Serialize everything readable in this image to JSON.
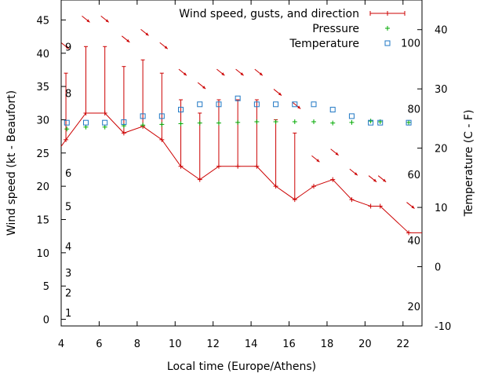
{
  "chart_data": {
    "type": "line",
    "xlabel": "Local time (Europe/Athens)",
    "ylabel": "Wind speed (kt - Beaufort)",
    "y2label": "Temperature (C - F)",
    "xlim": [
      4,
      23
    ],
    "ylim": [
      -1,
      48
    ],
    "y2lim": [
      -10,
      45
    ],
    "x_ticks": [
      4,
      6,
      8,
      10,
      12,
      14,
      16,
      18,
      20,
      22
    ],
    "y_ticks": [
      0,
      5,
      10,
      15,
      20,
      25,
      30,
      35,
      40,
      45
    ],
    "y2_ticks": [
      -10,
      0,
      10,
      20,
      30,
      40
    ],
    "beaufort_labels": [
      {
        "label": "1",
        "value": 1
      },
      {
        "label": "2",
        "value": 4
      },
      {
        "label": "3",
        "value": 7
      },
      {
        "label": "4",
        "value": 11
      },
      {
        "label": "5",
        "value": 17
      },
      {
        "label": "6",
        "value": 22
      },
      {
        "label": "8",
        "value": 34
      },
      {
        "label": "9",
        "value": 41
      }
    ],
    "fahrenheit_labels": [
      {
        "label": "20",
        "value": 20
      },
      {
        "label": "40",
        "value": 40
      },
      {
        "label": "60",
        "value": 60
      },
      {
        "label": "80",
        "value": 80
      },
      {
        "label": "100",
        "value": 100
      }
    ],
    "legend": [
      {
        "name": "Wind speed, gusts, and direction",
        "color": "#cc0000",
        "symbol": "line"
      },
      {
        "name": "Pressure",
        "color": "#00aa00",
        "symbol": "plus"
      },
      {
        "name": "Temperature",
        "color": "#1f77c4",
        "symbol": "square"
      }
    ],
    "series": [
      {
        "name": "Wind speed, gusts, and direction",
        "color": "#cc0000",
        "x": [
          4.25,
          5.3,
          6.3,
          7.3,
          8.3,
          9.3,
          10.3,
          11.3,
          12.3,
          13.3,
          14.3,
          15.3,
          16.3,
          17.3,
          18.3,
          19.3,
          20.3,
          20.8,
          22.3
        ],
        "speed": [
          27,
          31,
          31,
          28,
          29,
          27,
          23,
          21,
          23,
          23,
          23,
          20,
          18,
          20,
          21,
          18,
          17,
          17,
          13
        ],
        "gust": [
          37,
          41,
          41,
          38,
          39,
          37,
          33,
          31,
          33,
          33,
          33,
          30,
          28,
          null,
          null,
          null,
          null,
          null,
          null
        ]
      },
      {
        "name": "Pressure",
        "color": "#00aa00",
        "x": [
          4.3,
          5.3,
          6.3,
          7.3,
          8.3,
          9.3,
          10.3,
          11.3,
          12.3,
          13.3,
          14.3,
          15.3,
          16.3,
          17.3,
          18.3,
          19.3,
          20.3,
          20.8,
          22.3
        ],
        "y": [
          28.6,
          28.9,
          28.9,
          29.1,
          29.2,
          29.3,
          29.4,
          29.5,
          29.5,
          29.6,
          29.7,
          29.7,
          29.7,
          29.7,
          29.5,
          29.6,
          29.8,
          29.7,
          29.6
        ]
      },
      {
        "name": "Temperature",
        "color": "#1f77c4",
        "x": [
          4.3,
          5.3,
          6.3,
          7.3,
          8.3,
          9.3,
          10.3,
          11.3,
          12.3,
          13.3,
          14.3,
          15.3,
          16.3,
          17.3,
          18.3,
          19.3,
          20.3,
          20.8,
          22.3
        ],
        "y": [
          24.3,
          24.3,
          24.3,
          24.4,
          25.4,
          25.4,
          26.5,
          27.4,
          27.4,
          28.4,
          27.4,
          27.4,
          27.4,
          27.4,
          26.5,
          25.4,
          24.3,
          24.3,
          24.3
        ]
      }
    ],
    "wind_arrows": {
      "x": [
        4.2,
        5.3,
        6.3,
        7.4,
        8.4,
        9.4,
        10.4,
        11.4,
        12.4,
        13.4,
        14.4,
        15.4,
        16.4,
        17.4,
        18.4,
        19.4,
        20.4,
        20.9,
        22.4
      ],
      "y": [
        41,
        45,
        45,
        42,
        43,
        41,
        37,
        35,
        37,
        37,
        37,
        34,
        32,
        24,
        25,
        22,
        21,
        21,
        17
      ],
      "direction_deg": [
        330,
        315,
        315,
        315,
        315,
        315,
        315,
        315,
        315,
        315,
        315,
        315,
        315,
        315,
        315,
        315,
        315,
        315,
        315
      ]
    }
  }
}
